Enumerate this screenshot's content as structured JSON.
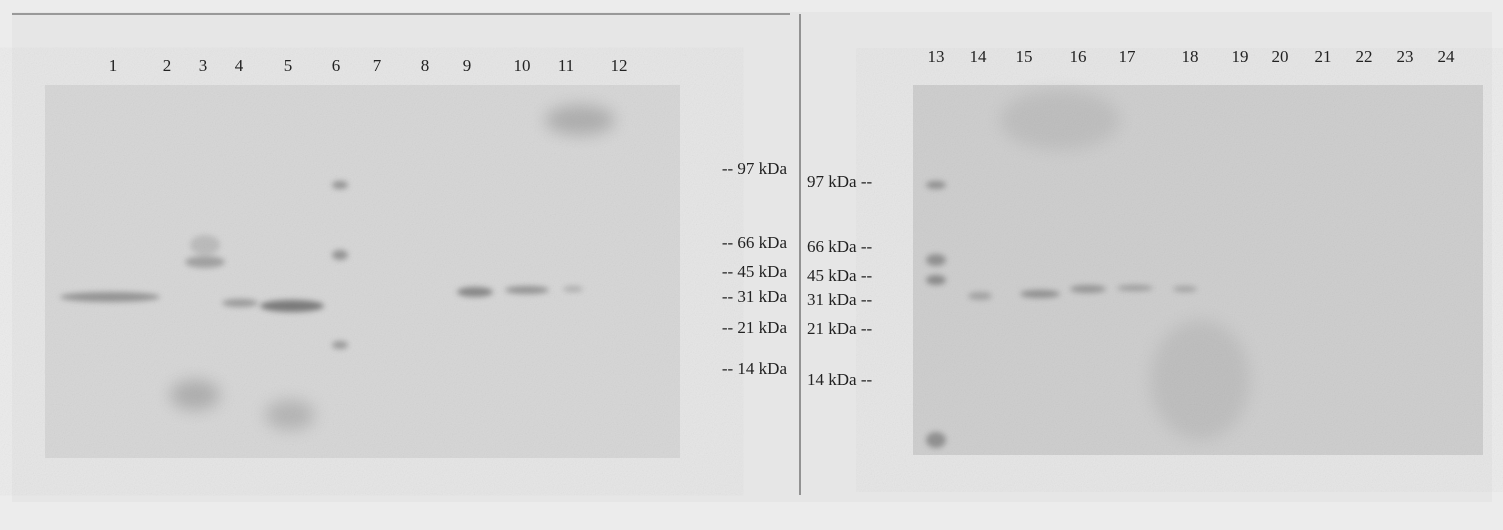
{
  "left_panel": {
    "lanes": [
      "1",
      "2",
      "3",
      "4",
      "5",
      "6",
      "7",
      "8",
      "9",
      "10",
      "11",
      "12"
    ],
    "markers": [
      "-- 97 kDa",
      "-- 66 kDa",
      "-- 45 kDa",
      "-- 31 kDa",
      "-- 21 kDa",
      "-- 14 kDa"
    ]
  },
  "right_panel": {
    "lanes": [
      "13",
      "14",
      "15",
      "16",
      "17",
      "18",
      "19",
      "20",
      "21",
      "22",
      "23",
      "24"
    ],
    "markers": [
      "97 kDa --",
      "66 kDa --",
      "45 kDa --",
      "31 kDa --",
      "21 kDa --",
      "14 kDa --"
    ]
  }
}
